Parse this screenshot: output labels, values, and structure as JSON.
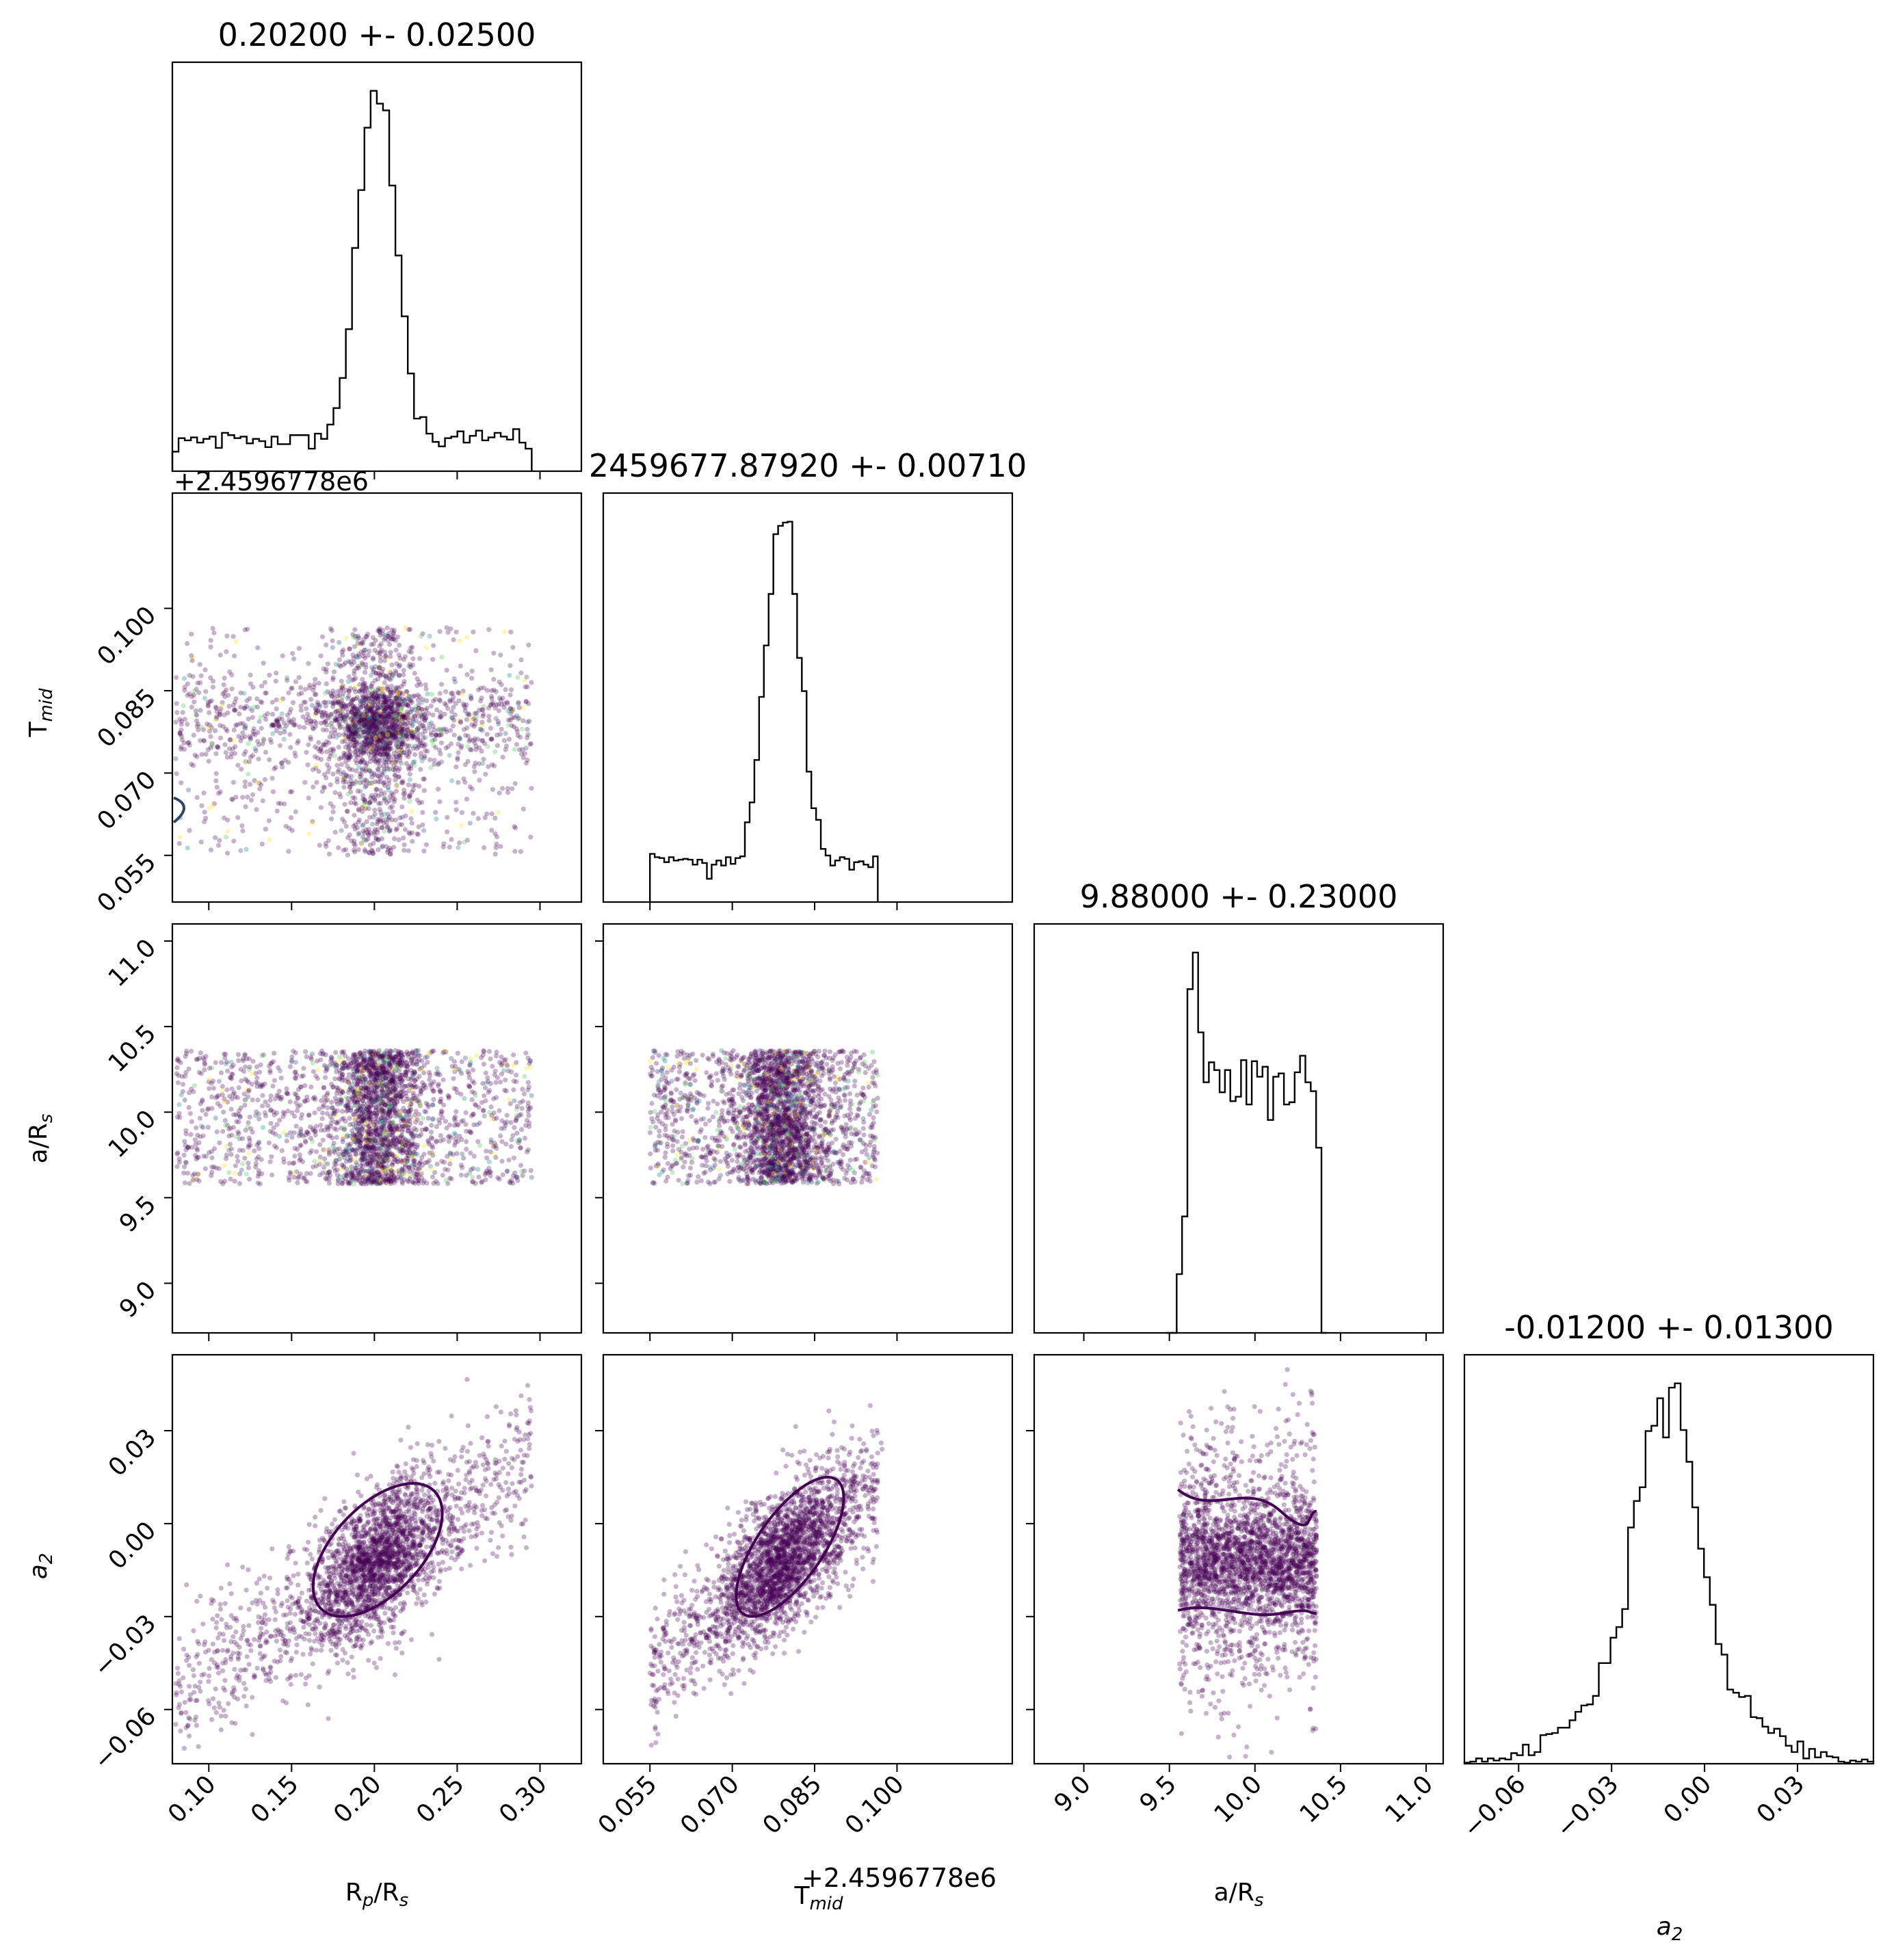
{
  "chart_data": {
    "type": "scatter",
    "kind": "corner-plot",
    "parameters": [
      {
        "key": "rp",
        "label": "R",
        "sub": "p",
        "label2": "/R",
        "sub2": "s",
        "range": [
          0.078,
          0.325
        ],
        "ticks": [
          0.1,
          0.15,
          0.2,
          0.25,
          0.3
        ],
        "tick_labels": [
          "0.10",
          "0.15",
          "0.20",
          "0.25",
          "0.30"
        ],
        "title": "0.20200 +- 0.02500",
        "mean": 0.202,
        "std": 0.025,
        "prior": [
          0.08,
          0.295
        ]
      },
      {
        "key": "tmid",
        "label": "T",
        "sub": "mid",
        "label2": "",
        "sub2": "",
        "range": [
          0.0465,
          0.121
        ],
        "ticks": [
          0.055,
          0.07,
          0.085,
          0.1
        ],
        "tick_labels": [
          "0.055",
          "0.070",
          "0.085",
          "0.100"
        ],
        "offset_text": "+2.4596778e6",
        "title": "2459677.87920 +- 0.00710",
        "mean": 0.0792,
        "std": 0.0071,
        "prior": [
          0.055,
          0.0965
        ]
      },
      {
        "key": "ars",
        "label": "a/R",
        "sub": "s",
        "label2": "",
        "sub2": "",
        "range": [
          8.71,
          11.1
        ],
        "ticks": [
          9.0,
          9.5,
          10.0,
          10.5,
          11.0
        ],
        "tick_labels": [
          "9.0",
          "9.5",
          "10.0",
          "10.5",
          "11.0"
        ],
        "title": "9.88000 +- 0.23000",
        "mean": 9.88,
        "std": 0.23,
        "prior": [
          9.58,
          10.36
        ]
      },
      {
        "key": "a2",
        "label": "a",
        "sub": "2",
        "label2": "",
        "sub2": "",
        "italic": true,
        "range": [
          -0.0775,
          0.0545
        ],
        "ticks": [
          -0.06,
          -0.03,
          0.0,
          0.03
        ],
        "tick_labels": [
          "−0.06",
          "−0.03",
          "0.00",
          "0.03"
        ],
        "title": "-0.01200 +- 0.01300",
        "mean": -0.012,
        "std": 0.013,
        "prior": null
      }
    ],
    "points_per_panel": 2600,
    "scatter_colormap": "viridis",
    "dominant_color": "#440154",
    "contour_color": "#440154",
    "histogram_color": "#000000",
    "grid": false,
    "legend": "none"
  }
}
